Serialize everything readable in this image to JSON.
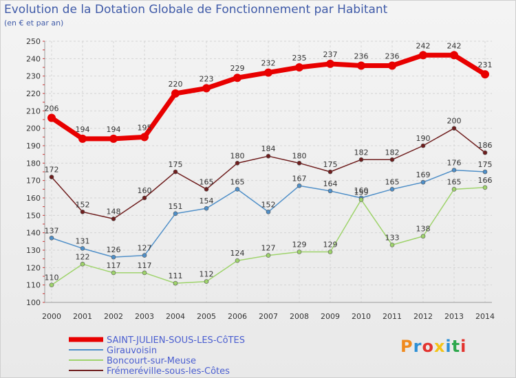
{
  "title": "Evolution de la Dotation Globale de Fonctionnement par Habitant",
  "subtitle": "(en € et par an)",
  "logo": {
    "text": "Proxiti",
    "colors": [
      "#f08a1e",
      "#2c8fd6",
      "#e3342f",
      "#f3c318",
      "#2c8fd6",
      "#2ea84d",
      "#e3342f"
    ]
  },
  "chart_data": {
    "type": "line",
    "x": [
      "2000",
      "2001",
      "2002",
      "2003",
      "2004",
      "2005",
      "2006",
      "2007",
      "2008",
      "2009",
      "2010",
      "2011",
      "2012",
      "2013",
      "2014"
    ],
    "ylim": [
      100,
      250
    ],
    "yticks": [
      100,
      110,
      120,
      130,
      140,
      150,
      160,
      170,
      180,
      190,
      200,
      210,
      220,
      230,
      240,
      250
    ],
    "grid": true,
    "legend_position": "bottom-left",
    "series": [
      {
        "name": "SAINT-JULIEN-SOUS-LES-CôTES",
        "color": "#e80000",
        "values": [
          206,
          194,
          194,
          195,
          220,
          223,
          229,
          232,
          235,
          237,
          236,
          236,
          242,
          242,
          231
        ]
      },
      {
        "name": "Girauvoisin",
        "color": "#4f8fc8",
        "values": [
          137,
          131,
          126,
          127,
          151,
          154,
          165,
          152,
          167,
          164,
          160,
          165,
          169,
          176,
          175
        ]
      },
      {
        "name": "Boncourt-sur-Meuse",
        "color": "#9ed36b",
        "values": [
          110,
          122,
          117,
          117,
          111,
          112,
          124,
          127,
          129,
          129,
          159,
          133,
          138,
          165,
          166
        ]
      },
      {
        "name": "Frémeréville-sous-les-Côtes",
        "color": "#6e1d1d",
        "values": [
          172,
          152,
          148,
          160,
          175,
          165,
          180,
          184,
          180,
          175,
          182,
          182,
          190,
          200,
          186
        ]
      }
    ]
  }
}
